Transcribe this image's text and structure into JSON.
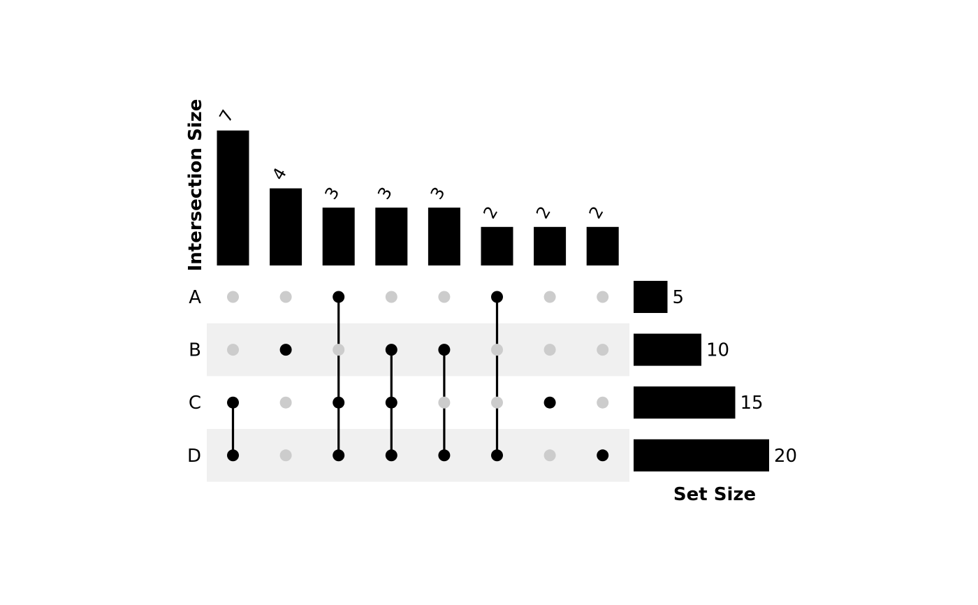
{
  "chart_data": {
    "type": "upset",
    "sets": [
      "A",
      "B",
      "C",
      "D"
    ],
    "set_sizes": [
      5,
      10,
      15,
      20
    ],
    "intersections": [
      {
        "members": [
          "C",
          "D"
        ],
        "size": 7
      },
      {
        "members": [
          "B"
        ],
        "size": 4
      },
      {
        "members": [
          "A",
          "C",
          "D"
        ],
        "size": 3
      },
      {
        "members": [
          "B",
          "C",
          "D"
        ],
        "size": 3
      },
      {
        "members": [
          "B",
          "D"
        ],
        "size": 3
      },
      {
        "members": [
          "A",
          "D"
        ],
        "size": 2
      },
      {
        "members": [
          "C"
        ],
        "size": 2
      },
      {
        "members": [
          "D"
        ],
        "size": 2
      }
    ],
    "ylabel": "Intersection Size",
    "set_size_label": "Set Size",
    "intersection_ylim": [
      0,
      7
    ],
    "set_size_xlim": [
      0,
      20
    ],
    "grid": false,
    "colors": {
      "bar": "#000000",
      "dot_active": "#000000",
      "dot_inactive": "#cccccc",
      "stripe": "#f0f0f0"
    }
  }
}
